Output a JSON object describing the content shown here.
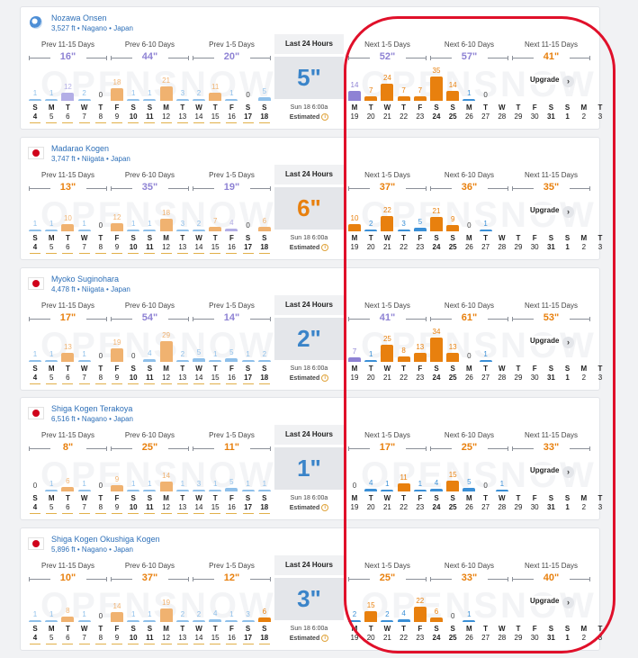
{
  "period_labels": [
    "Prev 11-15 Days",
    "Prev 6-10 Days",
    "Prev 1-5 Days",
    "Next 1-5 Days",
    "Next 6-10 Days",
    "Next 11-15 Days"
  ],
  "last24": {
    "title": "Last 24 Hours",
    "date": "Sun 18 6:00a",
    "estimated": "Estimated"
  },
  "upgrade_label": "Upgrade",
  "watermark_text": "OPENSNOW",
  "days": {
    "letters": [
      "S",
      "M",
      "T",
      "W",
      "T",
      "F",
      "S",
      "S",
      "M",
      "T",
      "W",
      "T",
      "F",
      "S",
      "S",
      "M",
      "T",
      "W",
      "T",
      "F",
      "S",
      "S",
      "M",
      "T",
      "W",
      "T",
      "F",
      "S",
      "S",
      "M",
      "T"
    ],
    "numbers": [
      "4",
      "5",
      "6",
      "7",
      "8",
      "9",
      "10",
      "11",
      "12",
      "13",
      "14",
      "15",
      "16",
      "17",
      "18",
      "19",
      "20",
      "21",
      "22",
      "23",
      "24",
      "25",
      "26",
      "27",
      "28",
      "29",
      "30",
      "31",
      "1",
      "2",
      "3"
    ]
  },
  "colors": {
    "orange": "#e8800e",
    "light_orange": "#f0b270",
    "purple": "#8e82d4",
    "light_purple": "#b3aee6",
    "blue": "#3a8fd6",
    "light_blue": "#8fc0ea",
    "big_blue": "#3a84c9",
    "big_orange": "#e8800e",
    "highlight_red": "#e0102a"
  },
  "resorts": [
    {
      "name": "Nozawa Onsen",
      "meta": "3,527 ft • Nagano • Japan",
      "icon": "resort-logo-icon",
      "totals": [
        "16\"",
        "44\"",
        "20\"",
        "52\"",
        "57\"",
        "41\""
      ],
      "total_colors": [
        "purple",
        "purple",
        "purple",
        "purple",
        "purple",
        "orange"
      ],
      "last24": "5\"",
      "last24_color": "big_blue",
      "vals": [
        "1",
        "1",
        "12",
        "2",
        "0",
        "18",
        "1",
        "1",
        "21",
        "3",
        "2",
        "11",
        "1",
        "0",
        "5",
        "14",
        "7",
        "24",
        "7",
        "7",
        "35",
        "14",
        "1",
        "0",
        "",
        "",
        "",
        "",
        "",
        "",
        ""
      ],
      "cols": [
        "lb",
        "lb",
        "lp",
        "lb",
        "",
        "lo",
        "lb",
        "lb",
        "lo",
        "lb",
        "lb",
        "lo",
        "lb",
        "",
        "lb",
        "p",
        "o",
        "o",
        "o",
        "o",
        "o",
        "o",
        "b",
        "",
        "",
        "",
        "",
        "",
        "",
        "",
        ""
      ]
    },
    {
      "name": "Madarao Kogen",
      "meta": "3,747 ft • Niigata • Japan",
      "icon": "japan-flag-icon",
      "totals": [
        "13\"",
        "35\"",
        "19\"",
        "37\"",
        "36\"",
        "35\""
      ],
      "total_colors": [
        "orange",
        "purple",
        "purple",
        "orange",
        "orange",
        "orange"
      ],
      "last24": "6\"",
      "last24_color": "big_orange",
      "vals": [
        "1",
        "1",
        "10",
        "1",
        "0",
        "12",
        "1",
        "1",
        "18",
        "3",
        "2",
        "7",
        "4",
        "0",
        "6",
        "10",
        "2",
        "22",
        "3",
        "5",
        "21",
        "9",
        "0",
        "1",
        "",
        "",
        "",
        "",
        "",
        "",
        ""
      ],
      "cols": [
        "lb",
        "lb",
        "lo",
        "lb",
        "",
        "lo",
        "lb",
        "lb",
        "lo",
        "lb",
        "lb",
        "lo",
        "lp",
        "",
        "lo",
        "o",
        "b",
        "o",
        "b",
        "b",
        "o",
        "o",
        "",
        "b",
        "",
        "",
        "",
        "",
        "",
        "",
        ""
      ]
    },
    {
      "name": "Myoko Suginohara",
      "meta": "4,478 ft • Niigata • Japan",
      "icon": "japan-flag-icon",
      "totals": [
        "17\"",
        "54\"",
        "14\"",
        "41\"",
        "61\"",
        "53\""
      ],
      "total_colors": [
        "orange",
        "purple",
        "purple",
        "purple",
        "orange",
        "orange"
      ],
      "last24": "2\"",
      "last24_color": "big_blue",
      "vals": [
        "1",
        "1",
        "13",
        "1",
        "0",
        "19",
        "0",
        "4",
        "29",
        "2",
        "5",
        "1",
        "5",
        "1",
        "2",
        "7",
        "1",
        "25",
        "8",
        "13",
        "34",
        "13",
        "0",
        "1",
        "",
        "",
        "",
        "",
        "",
        "",
        ""
      ],
      "cols": [
        "lb",
        "lb",
        "lo",
        "lb",
        "",
        "lo",
        "",
        "lb",
        "lo",
        "lb",
        "lb",
        "lb",
        "lb",
        "lb",
        "lb",
        "p",
        "b",
        "o",
        "o",
        "o",
        "o",
        "o",
        "",
        "b",
        "",
        "",
        "",
        "",
        "",
        "",
        ""
      ]
    },
    {
      "name": "Shiga Kogen Terakoya",
      "meta": "6,516 ft • Nagano • Japan",
      "icon": "japan-flag-icon",
      "totals": [
        "8\"",
        "25\"",
        "11\"",
        "17\"",
        "25\"",
        "33\""
      ],
      "total_colors": [
        "orange",
        "orange",
        "orange",
        "orange",
        "orange",
        "orange"
      ],
      "last24": "1\"",
      "last24_color": "big_blue",
      "vals": [
        "0",
        "1",
        "6",
        "1",
        "0",
        "9",
        "1",
        "1",
        "14",
        "1",
        "3",
        "1",
        "5",
        "1",
        "1",
        "0",
        "4",
        "1",
        "11",
        "1",
        "4",
        "15",
        "5",
        "0",
        "1",
        "",
        "",
        "",
        "",
        "",
        ""
      ],
      "cols": [
        "",
        "lb",
        "lo",
        "lb",
        "",
        "lo",
        "lb",
        "lb",
        "lo",
        "lb",
        "lb",
        "lb",
        "lb",
        "lb",
        "lb",
        "",
        "b",
        "b",
        "o",
        "b",
        "b",
        "o",
        "b",
        "",
        "b",
        "",
        "",
        "",
        "",
        "",
        ""
      ]
    },
    {
      "name": "Shiga Kogen Okushiga Kogen",
      "meta": "5,896 ft • Nagano • Japan",
      "icon": "japan-flag-icon",
      "totals": [
        "10\"",
        "37\"",
        "12\"",
        "25\"",
        "33\"",
        "40\""
      ],
      "total_colors": [
        "orange",
        "orange",
        "orange",
        "orange",
        "orange",
        "orange"
      ],
      "last24": "3\"",
      "last24_color": "big_blue",
      "vals": [
        "1",
        "1",
        "8",
        "1",
        "0",
        "14",
        "1",
        "1",
        "19",
        "2",
        "2",
        "4",
        "1",
        "3",
        "6",
        "2",
        "15",
        "2",
        "4",
        "22",
        "6",
        "0",
        "1",
        "",
        "",
        "",
        "",
        "",
        "",
        "",
        ""
      ],
      "cols": [
        "lb",
        "lb",
        "lo",
        "lb",
        "",
        "lo",
        "lb",
        "lb",
        "lo",
        "lb",
        "lb",
        "lb",
        "lb",
        "lb",
        "o",
        "b",
        "o",
        "b",
        "b",
        "o",
        "o",
        "",
        "b",
        "",
        "",
        "",
        "",
        "",
        "",
        "",
        ""
      ]
    }
  ]
}
